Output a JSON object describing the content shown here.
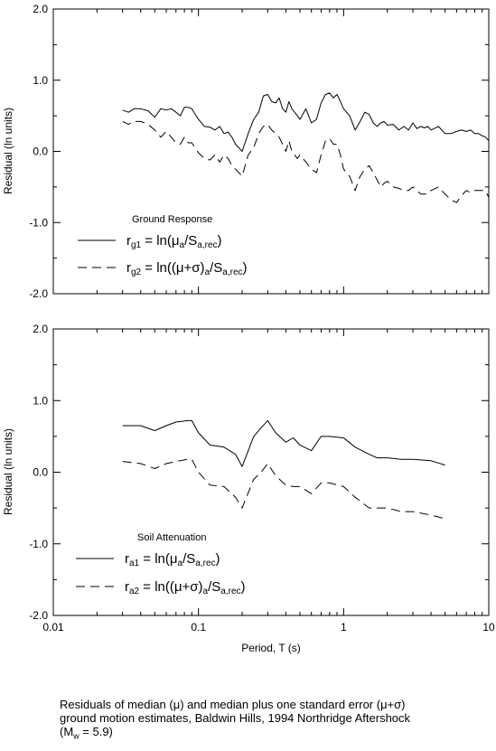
{
  "chart_data": [
    {
      "type": "line",
      "ylabel": "Residual (ln units)",
      "xlabel": "",
      "xscale": "log",
      "xlim": [
        0.01,
        10
      ],
      "ylim": [
        -2.0,
        2.0
      ],
      "xticks": [
        "0.01",
        "0.1",
        "1",
        "10"
      ],
      "yticks": [
        "2.0",
        "1.0",
        "0.0",
        "-1.0",
        "-2.0"
      ],
      "legend_title": "Ground Response",
      "legend_position": "lower-left",
      "series": [
        {
          "name": "rg1 = ln(μa/Sa,rec)",
          "style": "solid",
          "x": [
            0.03,
            0.033,
            0.036,
            0.04,
            0.045,
            0.05,
            0.055,
            0.06,
            0.065,
            0.07,
            0.075,
            0.08,
            0.085,
            0.09,
            0.095,
            0.1,
            0.11,
            0.12,
            0.13,
            0.14,
            0.15,
            0.16,
            0.17,
            0.18,
            0.19,
            0.2,
            0.22,
            0.24,
            0.26,
            0.28,
            0.3,
            0.32,
            0.34,
            0.36,
            0.38,
            0.4,
            0.42,
            0.44,
            0.46,
            0.48,
            0.5,
            0.55,
            0.6,
            0.65,
            0.7,
            0.75,
            0.8,
            0.85,
            0.9,
            0.95,
            1.0,
            1.1,
            1.2,
            1.3,
            1.4,
            1.5,
            1.6,
            1.7,
            1.8,
            1.9,
            2.0,
            2.2,
            2.4,
            2.6,
            2.8,
            3.0,
            3.2,
            3.4,
            3.6,
            3.8,
            4.0,
            4.5,
            5.0,
            5.5,
            6.0,
            6.5,
            7.0,
            7.5,
            8.0,
            8.5,
            9.0,
            9.5,
            10.0
          ],
          "values": [
            0.58,
            0.55,
            0.6,
            0.6,
            0.57,
            0.48,
            0.6,
            0.58,
            0.6,
            0.55,
            0.5,
            0.62,
            0.62,
            0.6,
            0.52,
            0.45,
            0.35,
            0.34,
            0.3,
            0.35,
            0.25,
            0.27,
            0.2,
            0.1,
            0.05,
            0.0,
            0.25,
            0.45,
            0.55,
            0.78,
            0.8,
            0.7,
            0.68,
            0.75,
            0.6,
            0.55,
            0.7,
            0.6,
            0.55,
            0.5,
            0.45,
            0.6,
            0.4,
            0.45,
            0.68,
            0.8,
            0.82,
            0.75,
            0.8,
            0.7,
            0.6,
            0.5,
            0.3,
            0.42,
            0.55,
            0.52,
            0.4,
            0.35,
            0.4,
            0.42,
            0.37,
            0.38,
            0.3,
            0.35,
            0.3,
            0.4,
            0.32,
            0.35,
            0.33,
            0.35,
            0.3,
            0.35,
            0.25,
            0.25,
            0.28,
            0.3,
            0.28,
            0.3,
            0.25,
            0.25,
            0.22,
            0.2,
            0.15
          ]
        },
        {
          "name": "rg2 = ln((μ+σ)a/Sa,rec)",
          "style": "dashed",
          "x": [
            0.03,
            0.033,
            0.036,
            0.04,
            0.045,
            0.05,
            0.055,
            0.06,
            0.065,
            0.07,
            0.075,
            0.08,
            0.085,
            0.09,
            0.095,
            0.1,
            0.11,
            0.12,
            0.13,
            0.14,
            0.15,
            0.16,
            0.17,
            0.18,
            0.19,
            0.2,
            0.22,
            0.24,
            0.26,
            0.28,
            0.3,
            0.32,
            0.34,
            0.36,
            0.38,
            0.4,
            0.42,
            0.44,
            0.46,
            0.48,
            0.5,
            0.55,
            0.6,
            0.65,
            0.7,
            0.75,
            0.8,
            0.85,
            0.9,
            0.95,
            1.0,
            1.1,
            1.2,
            1.3,
            1.4,
            1.5,
            1.6,
            1.7,
            1.8,
            1.9,
            2.0,
            2.2,
            2.4,
            2.6,
            2.8,
            3.0,
            3.2,
            3.4,
            3.6,
            3.8,
            4.0,
            4.5,
            5.0,
            5.5,
            6.0,
            6.5,
            7.0,
            7.5,
            8.0,
            8.5,
            9.0,
            9.5,
            10.0
          ],
          "values": [
            0.42,
            0.38,
            0.42,
            0.42,
            0.38,
            0.3,
            0.2,
            0.28,
            0.2,
            0.12,
            0.1,
            0.2,
            0.12,
            0.12,
            0.05,
            -0.02,
            -0.1,
            -0.12,
            -0.05,
            -0.15,
            -0.05,
            -0.1,
            -0.2,
            -0.25,
            -0.3,
            -0.35,
            -0.05,
            0.05,
            0.25,
            0.35,
            0.38,
            0.3,
            0.25,
            0.2,
            0.1,
            0.0,
            0.15,
            0.0,
            -0.05,
            -0.1,
            -0.05,
            -0.15,
            -0.25,
            -0.3,
            -0.05,
            0.15,
            0.18,
            0.1,
            0.1,
            -0.05,
            -0.25,
            -0.35,
            -0.55,
            -0.35,
            -0.25,
            -0.2,
            -0.3,
            -0.4,
            -0.5,
            -0.45,
            -0.42,
            -0.5,
            -0.52,
            -0.55,
            -0.55,
            -0.5,
            -0.55,
            -0.6,
            -0.6,
            -0.6,
            -0.55,
            -0.5,
            -0.6,
            -0.68,
            -0.72,
            -0.62,
            -0.55,
            -0.58,
            -0.55,
            -0.55,
            -0.55,
            -0.55,
            -0.65
          ]
        }
      ]
    },
    {
      "type": "line",
      "ylabel": "Residual (ln units)",
      "xlabel": "Period, T (s)",
      "xscale": "log",
      "xlim": [
        0.01,
        10
      ],
      "ylim": [
        -2.0,
        2.0
      ],
      "xticks": [
        "0.01",
        "0.1",
        "1",
        "10"
      ],
      "yticks": [
        "2.0",
        "1.0",
        "0.0",
        "-1.0",
        "-2.0"
      ],
      "legend_title": "Soil Attenuation",
      "legend_position": "lower-left",
      "series": [
        {
          "name": "ra1 = ln(μa/Sa,rec)",
          "style": "solid",
          "x": [
            0.03,
            0.04,
            0.05,
            0.06,
            0.07,
            0.085,
            0.09,
            0.1,
            0.12,
            0.15,
            0.18,
            0.2,
            0.24,
            0.27,
            0.3,
            0.34,
            0.4,
            0.45,
            0.5,
            0.6,
            0.7,
            0.8,
            1.0,
            1.2,
            1.5,
            1.7,
            2.0,
            2.5,
            3.0,
            4.0,
            5.0
          ],
          "values": [
            0.65,
            0.65,
            0.58,
            0.65,
            0.7,
            0.72,
            0.72,
            0.55,
            0.38,
            0.35,
            0.25,
            0.08,
            0.5,
            0.62,
            0.72,
            0.55,
            0.42,
            0.48,
            0.38,
            0.3,
            0.5,
            0.5,
            0.48,
            0.35,
            0.25,
            0.2,
            0.2,
            0.18,
            0.18,
            0.16,
            0.1
          ]
        },
        {
          "name": "ra2 = ln((μ+σ)a/Sa,rec)",
          "style": "dashed",
          "x": [
            0.03,
            0.04,
            0.05,
            0.06,
            0.07,
            0.085,
            0.09,
            0.1,
            0.12,
            0.15,
            0.18,
            0.2,
            0.24,
            0.27,
            0.3,
            0.34,
            0.4,
            0.45,
            0.5,
            0.6,
            0.7,
            0.8,
            1.0,
            1.2,
            1.5,
            1.7,
            2.0,
            2.5,
            3.0,
            4.0,
            5.0
          ],
          "values": [
            0.15,
            0.12,
            0.05,
            0.12,
            0.15,
            0.18,
            0.18,
            0.0,
            -0.18,
            -0.2,
            -0.35,
            -0.5,
            -0.1,
            0.0,
            0.12,
            -0.05,
            -0.18,
            -0.2,
            -0.2,
            -0.3,
            -0.15,
            -0.15,
            -0.2,
            -0.35,
            -0.5,
            -0.5,
            -0.5,
            -0.55,
            -0.55,
            -0.6,
            -0.65
          ]
        }
      ]
    }
  ],
  "caption": {
    "line1": "Residuals of median (μ) and median plus one standard error (μ+σ)",
    "line2": "ground motion estimates, Baldwin Hills, 1994 Northridge Aftershock",
    "line3": "(Mw = 5.9)"
  }
}
